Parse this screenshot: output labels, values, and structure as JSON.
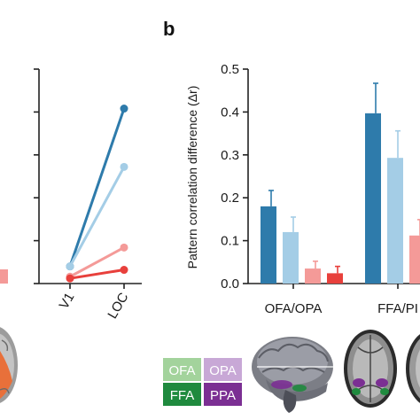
{
  "panel_label": "b",
  "colors": {
    "series_dark_blue": "#2e7bab",
    "series_light_blue": "#a4cde6",
    "series_light_red": "#f49a98",
    "series_red": "#e8403c",
    "ofa_box": "#a3d39c",
    "opa_box": "#c8a8d6",
    "ffa_box": "#1f8a3e",
    "ppa_box": "#7b2f93"
  },
  "legend": {
    "ofa": "OFA",
    "opa": "OPA",
    "ffa": "FFA",
    "ppa": "PPA"
  },
  "chart_data": [
    {
      "type": "line",
      "categories": [
        "V1",
        "LOC"
      ],
      "series": [
        {
          "values": [
            0.02,
            0.204
          ]
        },
        {
          "values": [
            0.02,
            0.136
          ]
        },
        {
          "values": [
            0.008,
            0.042
          ]
        },
        {
          "values": [
            0.006,
            0.016
          ]
        }
      ],
      "ylim": [
        0,
        0.25
      ],
      "yticks": [
        0,
        0.05,
        0.1,
        0.15,
        0.2,
        0.25
      ],
      "ytick_labels_visible": false
    },
    {
      "type": "bar",
      "categories": [
        "OFA/OPA",
        "FFA/PI"
      ],
      "series": [
        {
          "values": [
            0.18,
            0.397
          ],
          "errors": [
            0.037,
            0.07
          ]
        },
        {
          "values": [
            0.12,
            0.293
          ],
          "errors": [
            0.035,
            0.063
          ]
        },
        {
          "values": [
            0.035,
            0.112
          ],
          "errors": [
            0.017,
            0.037
          ]
        },
        {
          "values": [
            0.024,
            null
          ],
          "errors": [
            0.016,
            null
          ]
        }
      ],
      "ylabel": "Pattern correlation difference (Δr)",
      "ylim": [
        0,
        0.5
      ],
      "yticks": [
        "0.0",
        "0.1",
        "0.2",
        "0.3",
        "0.4",
        "0.5"
      ]
    }
  ]
}
